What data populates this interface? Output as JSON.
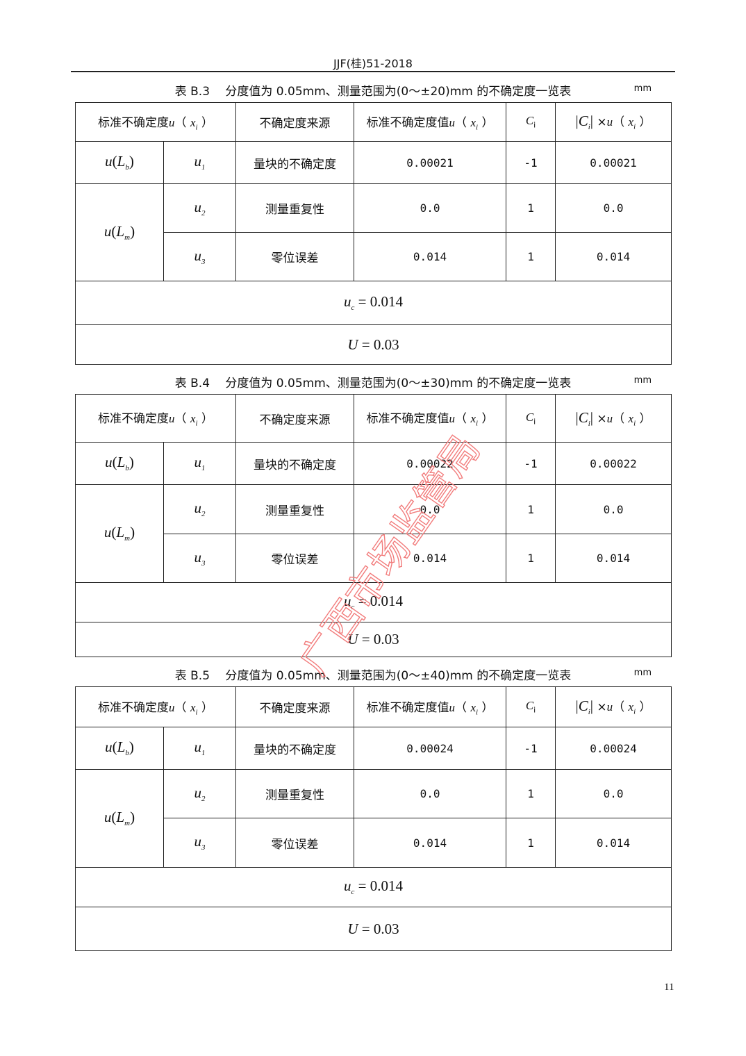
{
  "header": "JJF(桂)51-2018",
  "page_number": "11",
  "watermark": "广西市场监管局",
  "watermark_color": "#f27c7c",
  "headers": [
    "标准不确定度",
    "不确定度来源",
    "标准不确定度值",
    "C",
    "×"
  ],
  "tables": [
    {
      "caption": "表 B.3　 分度值为 0.05mm、测量范围为(0～±20)mm 的不确定度一览表",
      "unit": "mm",
      "rows": [
        [
          "量块的不确定度",
          "0.00021",
          "-1",
          "0.00021"
        ],
        [
          "测量重复性",
          "0.0",
          "1",
          "0.0"
        ],
        [
          "零位误差",
          "0.014",
          "1",
          "0.014"
        ]
      ],
      "uc": "0.014",
      "U": "0.03"
    },
    {
      "caption": "表 B.4　 分度值为 0.05mm、测量范围为(0～±30)mm 的不确定度一览表",
      "unit": "mm",
      "rows": [
        [
          "量块的不确定度",
          "0.00022",
          "-1",
          "0.00022"
        ],
        [
          "测量重复性",
          "0.0",
          "1",
          "0.0"
        ],
        [
          "零位误差",
          "0.014",
          "1",
          "0.014"
        ]
      ],
      "uc": "0.014",
      "U": "0.03"
    },
    {
      "caption": "表 B.5　 分度值为 0.05mm、测量范围为(0～±40)mm 的不确定度一览表",
      "unit": "mm",
      "rows": [
        [
          "量块的不确定度",
          "0.00024",
          "-1",
          "0.00024"
        ],
        [
          "测量重复性",
          "0.0",
          "1",
          "0.0"
        ],
        [
          "零位误差",
          "0.014",
          "1",
          "0.014"
        ]
      ],
      "uc": "0.014",
      "U": "0.03"
    }
  ]
}
